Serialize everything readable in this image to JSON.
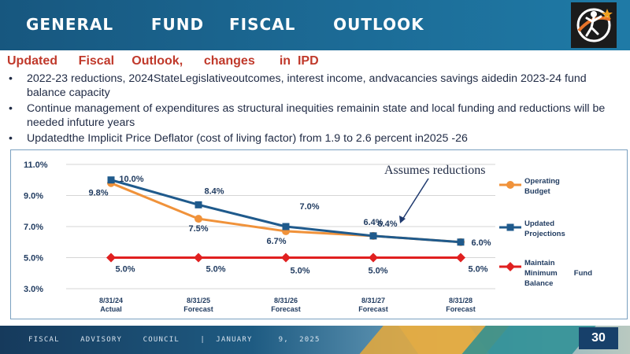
{
  "header": {
    "title": "GENERAL      FUND    FISCAL      OUTLOOK"
  },
  "subtitle": "Updated      Fiscal     Outlook,      changes       in  IPD",
  "bullets": [
    "2022-23 reductions, 2024StateLegislativeoutcomes, interest income, andvacancies savings aidedin 2023-24 fund balance capacity",
    "Continue management of expenditures as structural inequities remainin state and local funding and reductions will be needed infuture  years",
    "Updatedthe Implicit Price Deflator (cost of living factor) from 1.9 to 2.6 percent in2025  -26"
  ],
  "chart_data": {
    "type": "line",
    "annotation": "Assumes reductions",
    "x_labels": [
      [
        "8/31/24",
        "Actual"
      ],
      [
        "8/31/25",
        "Forecast"
      ],
      [
        "8/31/26",
        "Forecast"
      ],
      [
        "8/31/27",
        "Forecast"
      ],
      [
        "8/31/28",
        "Forecast"
      ]
    ],
    "y_ticks": [
      "11.0%",
      "9.0%",
      "7.0%",
      "5.0%",
      "3.0%"
    ],
    "ylim": [
      3.0,
      11.0
    ],
    "grid": true,
    "legend_position": "right",
    "series": [
      {
        "name_lines": [
          "Operating",
          "Budget"
        ],
        "color": "#f0923a",
        "marker": "circle",
        "values": [
          9.8,
          7.5,
          6.7,
          6.4,
          6.0
        ],
        "labels": [
          "9.8%",
          "7.5%",
          "6.7%",
          "6.4%",
          ""
        ]
      },
      {
        "name_lines": [
          "Updated",
          "Projections"
        ],
        "color": "#1f5a8c",
        "marker": "square",
        "values": [
          10.0,
          8.4,
          7.0,
          6.4,
          6.0
        ],
        "labels": [
          "10.0%",
          "8.4%",
          "7.0%",
          "6.4%",
          "6.0%"
        ]
      },
      {
        "name_lines": [
          "Maintain",
          "Minimum        Fund",
          "Balance"
        ],
        "color": "#e02020",
        "marker": "diamond",
        "values": [
          5.0,
          5.0,
          5.0,
          5.0,
          5.0
        ],
        "labels": [
          "5.0%",
          "5.0%",
          "5.0%",
          "5.0%",
          "5.0%"
        ]
      }
    ]
  },
  "footer": {
    "text": "FISCAL    ADVISORY    COUNCIL    |  JANUARY     9,  2025",
    "page": "30"
  }
}
